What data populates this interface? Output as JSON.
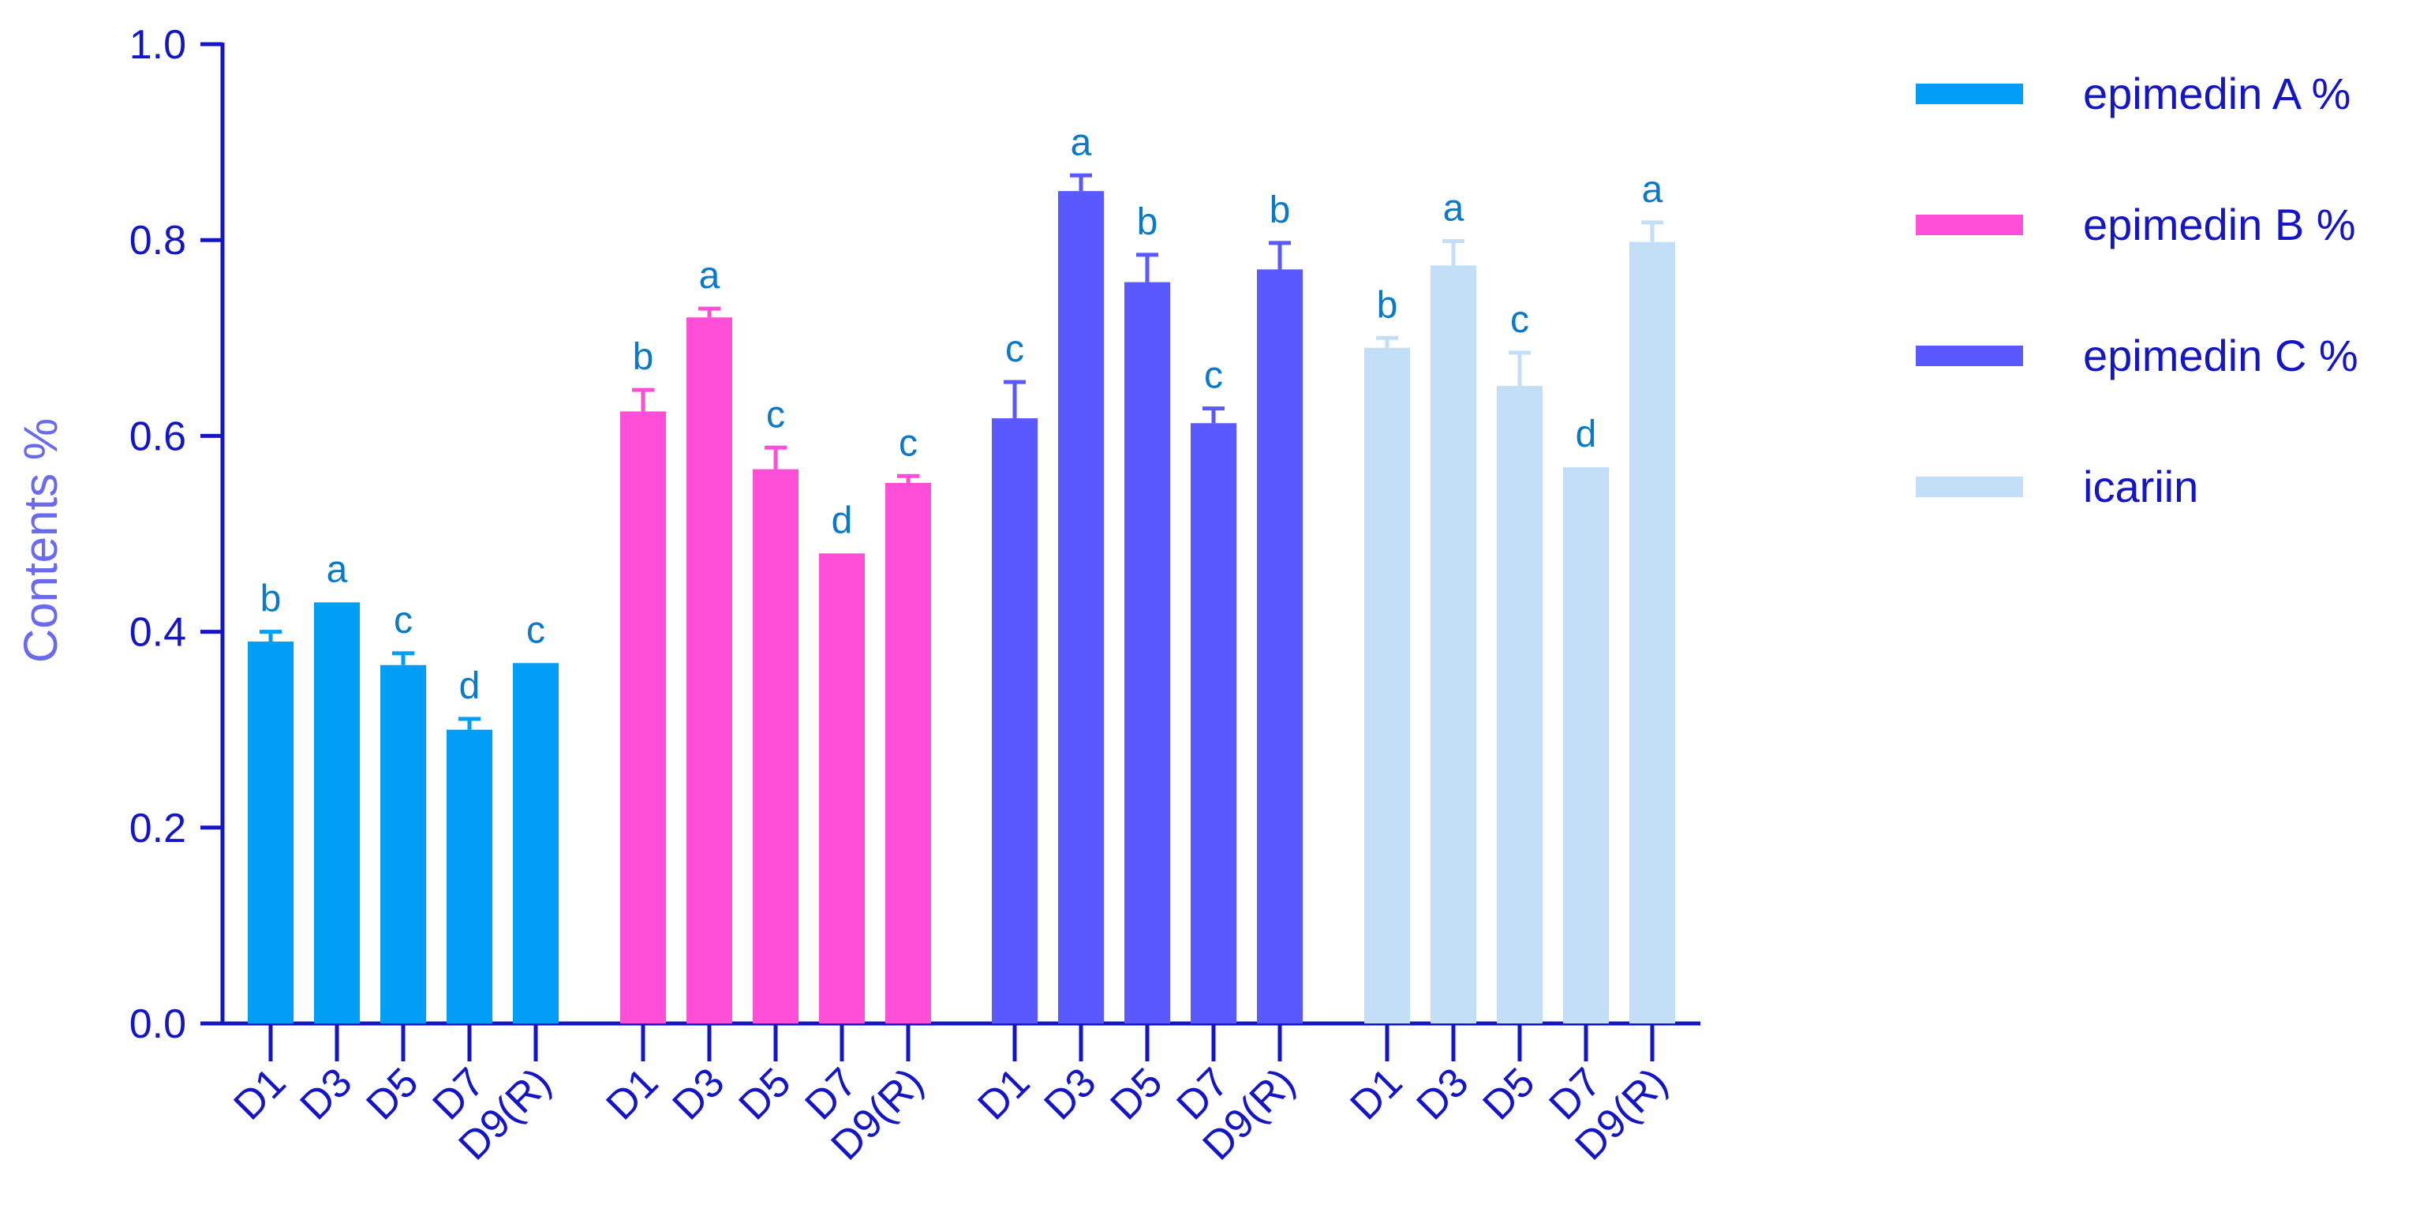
{
  "chart_data": {
    "type": "bar",
    "title": "",
    "xlabel": "",
    "ylabel": "Contents %",
    "ylim": [
      0,
      1.0
    ],
    "yticks": [
      "0.0",
      "0.2",
      "0.4",
      "0.6",
      "0.8",
      "1.0"
    ],
    "ytick_values": [
      0,
      0.2,
      0.4,
      0.6,
      0.8,
      1.0
    ],
    "categories": [
      "D1",
      "D3",
      "D5",
      "D7",
      "D9(R)"
    ],
    "grid": false,
    "legend_position": "right",
    "series": [
      {
        "name": "epimedin A %",
        "color": "#009ff5",
        "values": [
          0.39,
          0.43,
          0.366,
          0.3,
          0.368
        ],
        "errors": [
          0.01,
          0.0,
          0.012,
          0.011,
          0.0
        ],
        "letters": [
          "b",
          "a",
          "c",
          "d",
          "c"
        ]
      },
      {
        "name": "epimedin B %",
        "color": "#ff4fd8",
        "values": [
          0.625,
          0.721,
          0.566,
          0.48,
          0.552
        ],
        "errors": [
          0.022,
          0.009,
          0.022,
          0.0,
          0.007
        ],
        "letters": [
          "b",
          "a",
          "c",
          "d",
          "c"
        ]
      },
      {
        "name": "epimedin C %",
        "color": "#5a58ff",
        "values": [
          0.618,
          0.85,
          0.757,
          0.613,
          0.77
        ],
        "errors": [
          0.037,
          0.016,
          0.028,
          0.015,
          0.027
        ],
        "letters": [
          "c",
          "a",
          "b",
          "c",
          "b"
        ]
      },
      {
        "name": "icariin",
        "color": "#c3dff7",
        "values": [
          0.69,
          0.774,
          0.651,
          0.568,
          0.798
        ],
        "errors": [
          0.01,
          0.025,
          0.034,
          0.0,
          0.02
        ],
        "letters": [
          "b",
          "a",
          "c",
          "d",
          "a"
        ]
      }
    ]
  }
}
